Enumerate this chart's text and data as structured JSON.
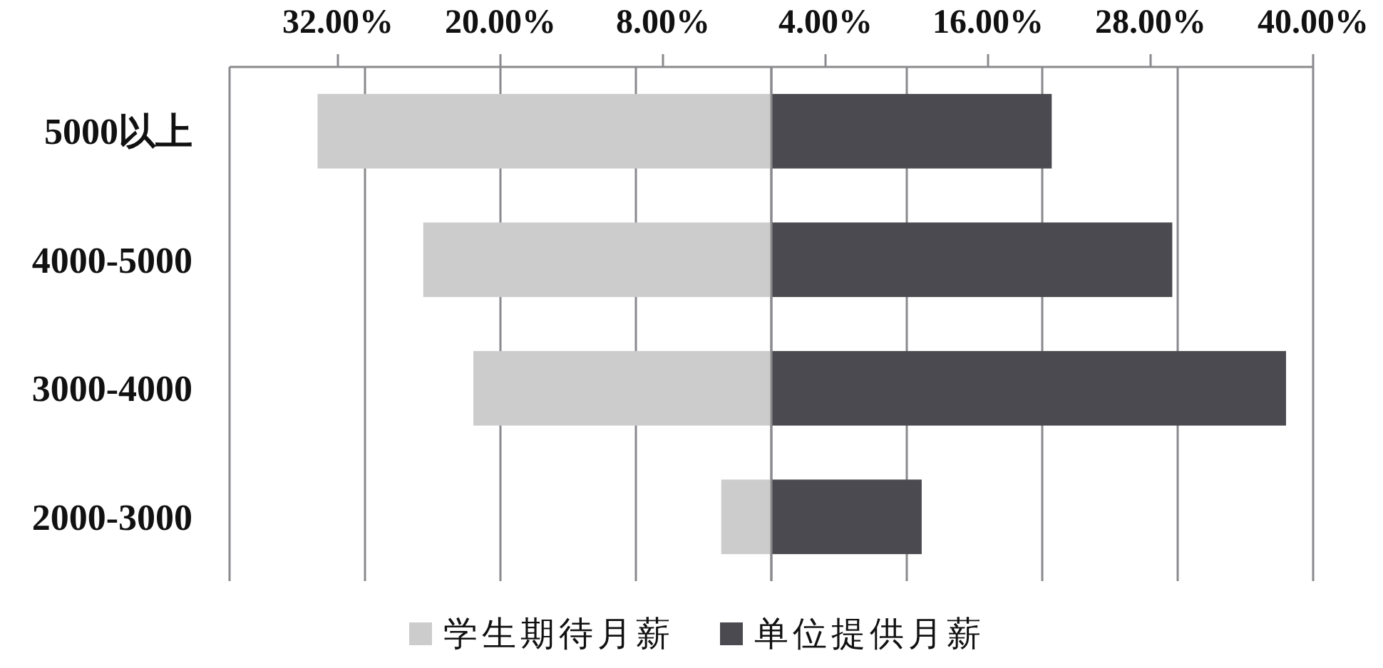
{
  "chart_data": {
    "type": "bar",
    "orientation": "horizontal",
    "categories": [
      "5000以上",
      "4000-5000",
      "3000-4000",
      "2000-3000"
    ],
    "series": [
      {
        "name": "学生期待月薪",
        "color": "#cccccc",
        "values": [
          -33.5,
          -25.7,
          -22.0,
          -3.7
        ]
      },
      {
        "name": "单位提供月薪",
        "color": "#4a4a50",
        "values": [
          20.7,
          29.6,
          38.0,
          11.1
        ]
      }
    ],
    "xlim": [
      -40,
      40
    ],
    "xticks": [
      {
        "value": -32,
        "label": "32.00%"
      },
      {
        "value": -20,
        "label": "20.00%"
      },
      {
        "value": -8,
        "label": "8.00%"
      },
      {
        "value": 4,
        "label": "4.00%"
      },
      {
        "value": 16,
        "label": "16.00%"
      },
      {
        "value": 28,
        "label": "28.00%"
      },
      {
        "value": 40,
        "label": "40.00%"
      },
      {
        "value": -40,
        "label": null
      },
      {
        "value": -30,
        "label": null
      },
      {
        "value": -20,
        "label": null
      },
      {
        "value": -10,
        "label": null
      },
      {
        "value": 0,
        "label": null
      },
      {
        "value": 10,
        "label": null
      },
      {
        "value": 20,
        "label": null
      },
      {
        "value": 30,
        "label": null
      },
      {
        "value": 40,
        "label": null
      }
    ],
    "grid": "x",
    "legend": "bottom",
    "stacked": true
  }
}
